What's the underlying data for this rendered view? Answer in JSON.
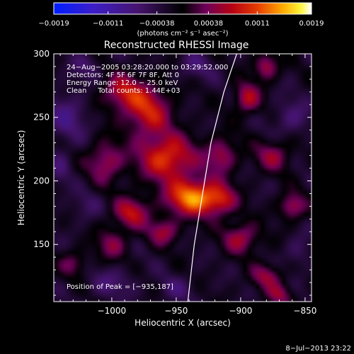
{
  "chart_data": {
    "type": "heatmap",
    "title": "Reconstructed RHESSI Image",
    "xlabel": "Heliocentric X (arcsec)",
    "ylabel": "Heliocentric Y (arcsec)",
    "xlim": [
      -1045,
      -845
    ],
    "ylim": [
      105,
      300
    ],
    "x_ticks": [
      -1000,
      -950,
      -900,
      -850
    ],
    "x_tick_labels": [
      "−1000",
      "−950",
      "−900",
      "−850"
    ],
    "y_ticks": [
      150,
      200,
      250,
      300
    ],
    "y_tick_labels": [
      "150",
      "200",
      "250",
      "300"
    ],
    "colorbar": {
      "ticks": [
        -0.0019,
        -0.0011,
        -0.00038,
        0.00038,
        0.0011,
        0.0019
      ],
      "tick_labels": [
        "−0.0019",
        "−0.0011",
        "−0.00038",
        "0.00038",
        "0.0011",
        "0.0019"
      ],
      "range": [
        -0.0019,
        0.0019
      ],
      "units_label": "(photons cm⁻² s⁻¹ asec⁻²)"
    },
    "annotations": [
      "24−Aug−2005 03:28:20.000 to 03:29:52.000",
      "Detectors: 4F 5F 6F 7F 8F, Att 0",
      "Energy Range: 12.0 − 25.0 keV",
      "Clean     Total counts: 1.44E+03"
    ],
    "peak_label": "Position of Peak = [−935,187]",
    "peak": [
      -935,
      187
    ],
    "limb": [
      [
        -941,
        105
      ],
      [
        -936,
        150
      ],
      [
        -930,
        187
      ],
      [
        -923,
        230
      ],
      [
        -913,
        270
      ],
      [
        -903,
        300
      ]
    ],
    "blobs": [
      [
        -937,
        187,
        20,
        14,
        1.0
      ],
      [
        -957,
        218,
        22,
        18,
        0.78
      ],
      [
        -972,
        255,
        18,
        20,
        0.65
      ],
      [
        -992,
        270,
        16,
        14,
        0.55
      ],
      [
        -1005,
        215,
        14,
        16,
        0.5
      ],
      [
        -985,
        175,
        14,
        12,
        0.6
      ],
      [
        -960,
        160,
        12,
        10,
        0.5
      ],
      [
        -915,
        220,
        12,
        14,
        0.5
      ],
      [
        -895,
        265,
        10,
        12,
        0.58
      ],
      [
        -880,
        290,
        9,
        10,
        0.55
      ],
      [
        -875,
        220,
        14,
        12,
        0.45
      ],
      [
        -860,
        180,
        10,
        10,
        0.55
      ],
      [
        -900,
        155,
        14,
        12,
        0.52
      ],
      [
        -880,
        125,
        12,
        10,
        0.45
      ],
      [
        -1000,
        150,
        12,
        12,
        0.4
      ],
      [
        -1030,
        135,
        10,
        10,
        0.35
      ],
      [
        -915,
        185,
        12,
        12,
        0.5
      ],
      [
        -870,
        110,
        10,
        8,
        0.4
      ]
    ],
    "neg_blobs": [
      [
        -1035,
        250,
        16,
        20,
        0.9
      ],
      [
        -1020,
        290,
        12,
        10,
        0.6
      ],
      [
        -935,
        290,
        14,
        10,
        0.7
      ],
      [
        -860,
        250,
        14,
        14,
        0.8
      ],
      [
        -1000,
        120,
        18,
        12,
        0.7
      ],
      [
        -950,
        115,
        14,
        10,
        0.6
      ],
      [
        -855,
        145,
        10,
        12,
        0.6
      ],
      [
        -1020,
        180,
        12,
        12,
        0.5
      ],
      [
        -1040,
        210,
        8,
        14,
        0.6
      ]
    ]
  },
  "footer": {
    "timestamp": "8−Jul−2013 23:22"
  },
  "colors": {
    "background": "#000000",
    "text": "#ffffff",
    "limb": "#ffffff"
  }
}
